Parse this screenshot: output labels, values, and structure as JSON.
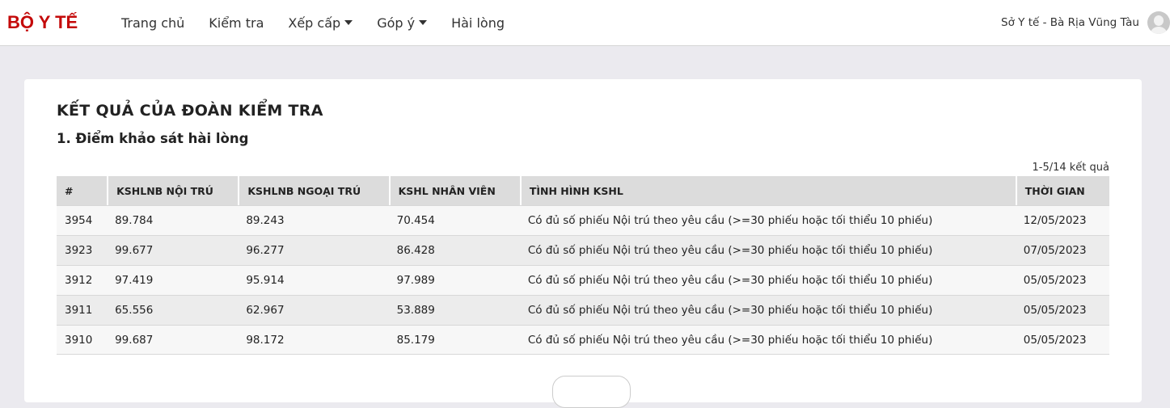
{
  "nav": {
    "logo": "BỘ Y TẾ",
    "items": [
      {
        "label": "Trang chủ"
      },
      {
        "label": "Kiểm tra"
      },
      {
        "label": "Xếp cấp",
        "dropdown": true
      },
      {
        "label": "Góp ý",
        "dropdown": true
      },
      {
        "label": "Hài lòng"
      }
    ],
    "user": "Sở Y tế - Bà Rịa Vũng Tàu"
  },
  "main": {
    "title": "KẾT QUẢ CỦA ĐOÀN KIỂM TRA",
    "subtitle": "1. Điểm khảo sát hài lòng",
    "count": "1-5/14 kết quả",
    "columns": [
      "#",
      "KSHLNB NỘI TRÚ",
      "KSHLNB NGOẠI TRÚ",
      "KSHL NHÂN VIÊN",
      "TÌNH HÌNH KSHL",
      "THỜI GIAN"
    ],
    "rows": [
      [
        "3954",
        "89.784",
        "89.243",
        "70.454",
        "Có đủ số phiếu Nội trú theo yêu cầu (>=30 phiếu hoặc tối thiểu 10 phiếu)",
        "12/05/2023"
      ],
      [
        "3923",
        "99.677",
        "96.277",
        "86.428",
        "Có đủ số phiếu Nội trú theo yêu cầu (>=30 phiếu hoặc tối thiểu 10 phiếu)",
        "07/05/2023"
      ],
      [
        "3912",
        "97.419",
        "95.914",
        "97.989",
        "Có đủ số phiếu Nội trú theo yêu cầu (>=30 phiếu hoặc tối thiểu 10 phiếu)",
        "05/05/2023"
      ],
      [
        "3911",
        "65.556",
        "62.967",
        "53.889",
        "Có đủ số phiếu Nội trú theo yêu cầu (>=30 phiếu hoặc tối thiểu 10 phiếu)",
        "05/05/2023"
      ],
      [
        "3910",
        "99.687",
        "98.172",
        "85.179",
        "Có đủ số phiếu Nội trú theo yêu cầu (>=30 phiếu hoặc tối thiểu 10 phiếu)",
        "05/05/2023"
      ]
    ]
  },
  "colors": {
    "brand": "#c40a0a"
  }
}
